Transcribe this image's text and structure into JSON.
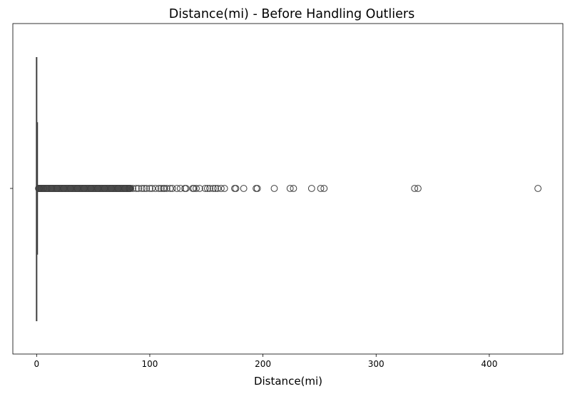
{
  "chart_data": {
    "type": "boxplot",
    "title": "Distance(mi) - Before Handling Outliers",
    "xlabel": "Distance(mi)",
    "ylabel": "",
    "xlim": [
      -21,
      465
    ],
    "xticks": [
      0,
      100,
      200,
      300,
      400
    ],
    "xtick_labels": [
      "0",
      "100",
      "200",
      "300",
      "400"
    ],
    "orientation": "horizontal",
    "grid": false,
    "box": {
      "min": 0.0,
      "q1": 0.05,
      "median": 0.25,
      "q3": 0.75,
      "whisker_high": 1.8,
      "fill_color": "#4c72b0",
      "line_color": "#3f3f3f"
    },
    "outliers": [
      1.9,
      2.5,
      4,
      6,
      9,
      13,
      18,
      24,
      30,
      36,
      42,
      48,
      54,
      60,
      66,
      72,
      78,
      82,
      85,
      88,
      90,
      93,
      95,
      97,
      100,
      102,
      105,
      108,
      110,
      112,
      113,
      115,
      118,
      120,
      124,
      127,
      131,
      132,
      138,
      139,
      141,
      144,
      149,
      151,
      153,
      156,
      158,
      160,
      163,
      166,
      175,
      176,
      183,
      194,
      195,
      210,
      224,
      227,
      243,
      251,
      254,
      334,
      337,
      443
    ],
    "outlier_dense_range": [
      1.8,
      83
    ]
  }
}
